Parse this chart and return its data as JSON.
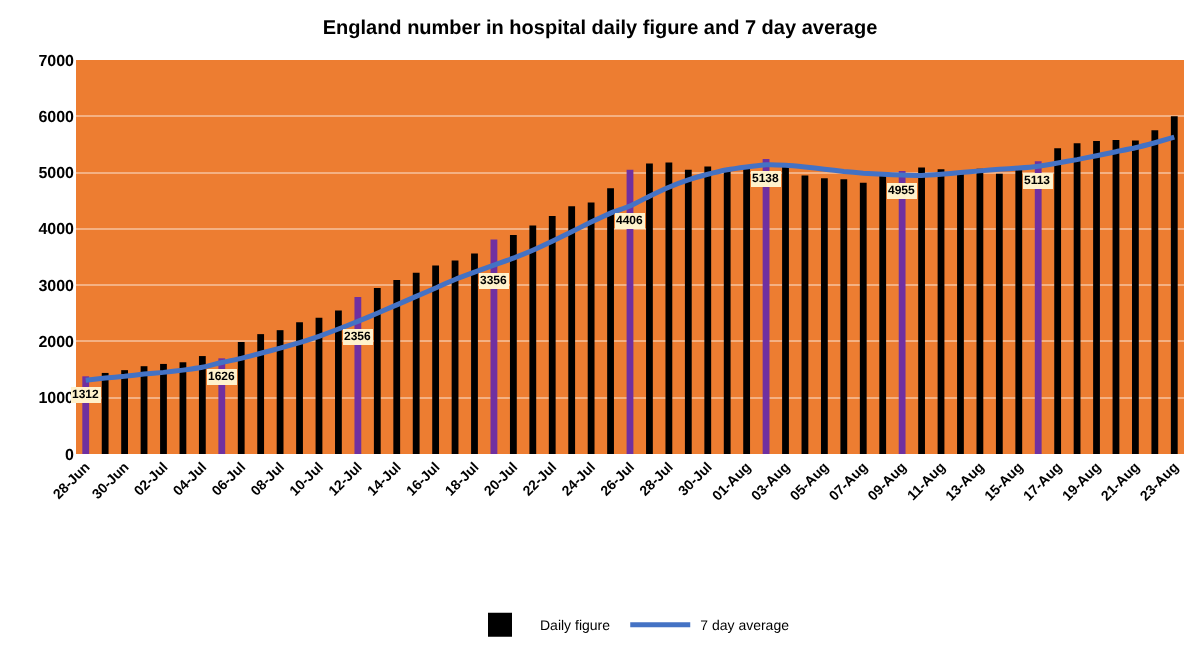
{
  "chart_data": {
    "type": "bar",
    "title": "England number in hospital daily figure and 7 day average",
    "categories": [
      "28-Jun",
      null,
      "30-Jun",
      null,
      "02-Jul",
      null,
      "04-Jul",
      null,
      "06-Jul",
      null,
      "08-Jul",
      null,
      "10-Jul",
      null,
      "12-Jul",
      null,
      "14-Jul",
      null,
      "16-Jul",
      null,
      "18-Jul",
      null,
      "20-Jul",
      null,
      "22-Jul",
      null,
      "24-Jul",
      null,
      "26-Jul",
      null,
      "28-Jul",
      null,
      "30-Jul",
      null,
      "01-Aug",
      null,
      "03-Aug",
      null,
      "05-Aug",
      null,
      "07-Aug",
      null,
      "09-Aug",
      null,
      "11-Aug",
      null,
      "13-Aug",
      null,
      "15-Aug",
      null,
      "17-Aug",
      null,
      "19-Aug",
      null,
      "21-Aug",
      null,
      "23-Aug"
    ],
    "series": [
      {
        "name": "Daily figure",
        "color": "#000000",
        "colors": [
          "#7030a0",
          "#000000",
          "#000000",
          "#000000",
          "#000000",
          "#000000",
          "#000000",
          "#7030a0",
          "#000000",
          "#000000",
          "#000000",
          "#000000",
          "#000000",
          "#000000",
          "#7030a0",
          "#000000",
          "#000000",
          "#000000",
          "#000000",
          "#000000",
          "#000000",
          "#7030a0",
          "#000000",
          "#000000",
          "#000000",
          "#000000",
          "#000000",
          "#000000",
          "#7030a0",
          "#000000",
          "#000000",
          "#000000",
          "#000000",
          "#000000",
          "#000000",
          "#7030a0",
          "#000000",
          "#000000",
          "#000000",
          "#000000",
          "#000000",
          "#000000",
          "#7030a0",
          "#000000",
          "#000000",
          "#000000",
          "#000000",
          "#000000",
          "#000000",
          "#7030a0",
          "#000000",
          "#000000",
          "#000000",
          "#000000",
          "#000000",
          "#000000",
          "#000000"
        ],
        "values": [
          1380,
          1440,
          1490,
          1560,
          1600,
          1630,
          1740,
          1700,
          1990,
          2130,
          2200,
          2340,
          2420,
          2550,
          2790,
          2950,
          3090,
          3220,
          3350,
          3440,
          3560,
          3810,
          3890,
          4060,
          4230,
          4400,
          4470,
          4720,
          5050,
          5160,
          5180,
          5050,
          5110,
          5030,
          5070,
          5240,
          5100,
          4950,
          4900,
          4880,
          4820,
          4950,
          5030,
          5090,
          5060,
          5030,
          5070,
          4980,
          5080,
          5200,
          5430,
          5520,
          5560,
          5580,
          5570,
          5750,
          6000
        ]
      },
      {
        "name": "7 day average",
        "type": "line",
        "color": "#4472c4",
        "values": [
          1312,
          1350,
          1380,
          1420,
          1450,
          1490,
          1540,
          1626,
          1700,
          1790,
          1880,
          1980,
          2090,
          2220,
          2356,
          2500,
          2650,
          2800,
          2950,
          3100,
          3230,
          3356,
          3480,
          3620,
          3780,
          3950,
          4120,
          4280,
          4406,
          4580,
          4740,
          4870,
          4970,
          5050,
          5100,
          5138,
          5130,
          5100,
          5060,
          5020,
          4990,
          4970,
          4955,
          4950,
          4970,
          5000,
          5030,
          5060,
          5080,
          5113,
          5170,
          5230,
          5300,
          5370,
          5440,
          5530,
          5630
        ],
        "value_labels": [
          "1312",
          null,
          null,
          null,
          null,
          null,
          null,
          "1626",
          null,
          null,
          null,
          null,
          null,
          null,
          "2356",
          null,
          null,
          null,
          null,
          null,
          null,
          "3356",
          null,
          null,
          null,
          null,
          null,
          null,
          "4406",
          null,
          null,
          null,
          null,
          null,
          null,
          "5138",
          null,
          null,
          null,
          null,
          null,
          null,
          "4955",
          null,
          null,
          null,
          null,
          null,
          null,
          "5113",
          null,
          null,
          null,
          null,
          null,
          null,
          null
        ]
      }
    ],
    "ylim": [
      0,
      7000
    ],
    "yticks": [
      0,
      1000,
      2000,
      3000,
      4000,
      5000,
      6000,
      7000
    ],
    "grid": "y",
    "legend": "bottom",
    "marker": "none",
    "line_style": "solid"
  }
}
